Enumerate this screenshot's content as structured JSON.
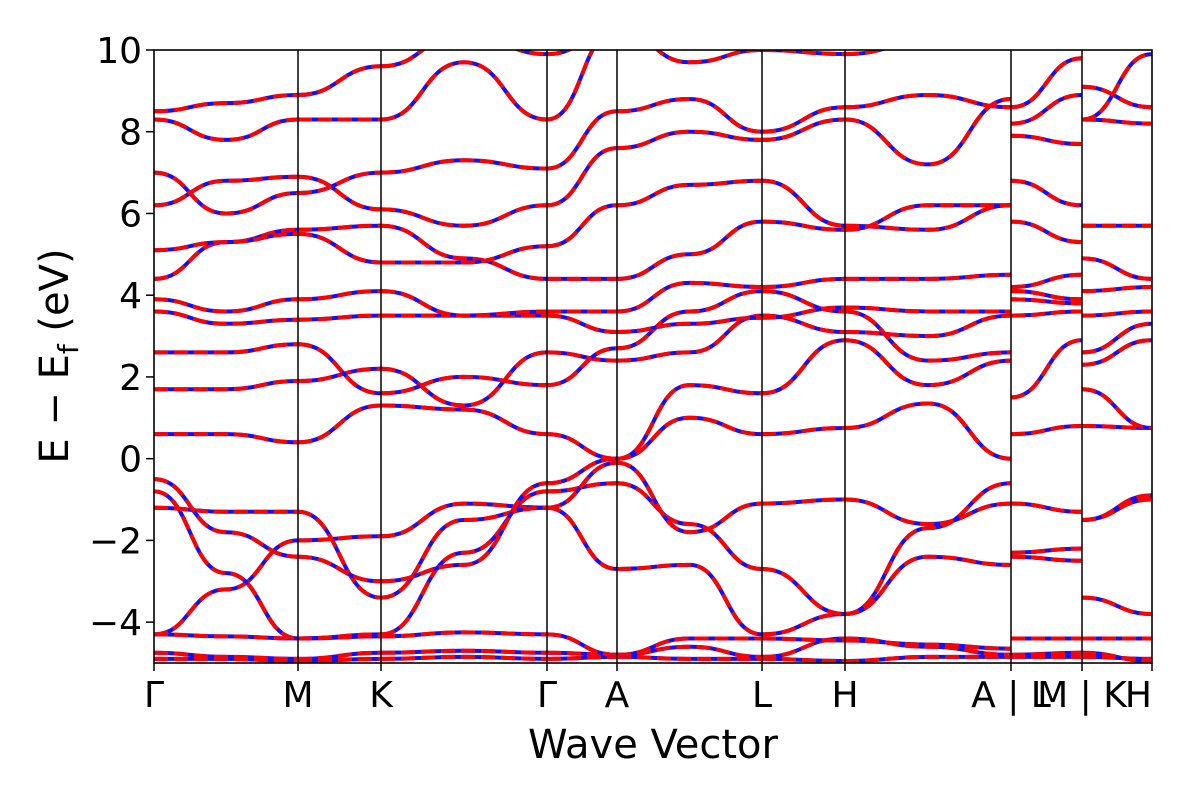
{
  "chart_data": {
    "type": "line",
    "xlabel": "Wave Vector",
    "ylabel": "E − E",
    "ylabel_sub": "f",
    "ylabel_unit": " (eV)",
    "ylim": [
      -5,
      10
    ],
    "yticks": [
      -4,
      -2,
      0,
      2,
      4,
      6,
      8,
      10
    ],
    "ytick_labels": [
      "−4",
      "−2",
      "0",
      "2",
      "4",
      "6",
      "8",
      "10"
    ],
    "xticks": [
      {
        "label": "Γ"
      },
      {
        "label": "M"
      },
      {
        "label": "K"
      },
      {
        "label": "Γ"
      },
      {
        "label": "A"
      },
      {
        "label": "L"
      },
      {
        "label": "H"
      },
      {
        "label": "A | L"
      },
      {
        "label": "M | K"
      },
      {
        "label": "H"
      }
    ],
    "grid": false,
    "legend": "none",
    "series_styles": [
      {
        "style": "solid",
        "color": "#1010ff"
      },
      {
        "style": "dashed",
        "color": "#ff0000"
      }
    ]
  }
}
